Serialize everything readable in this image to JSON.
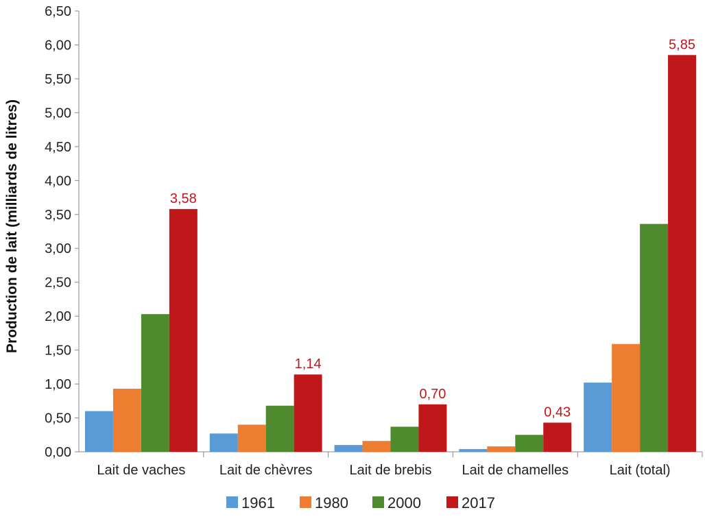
{
  "chart_data": {
    "type": "bar",
    "title": "",
    "xlabel": "",
    "ylabel": "Production de lait (milliards de litres)",
    "ylim": [
      0,
      6.5
    ],
    "yticks": [
      "0,00",
      "0,50",
      "1,00",
      "1,50",
      "2,00",
      "2,50",
      "3,00",
      "3,50",
      "4,00",
      "4,50",
      "5,00",
      "5,50",
      "6,00",
      "6,50"
    ],
    "categories": [
      "Lait de vaches",
      "Lait de chèvres",
      "Lait de brebis",
      "Lait de chamelles",
      "Lait (total)"
    ],
    "series": [
      {
        "name": "1961",
        "color": "#5b9bd5",
        "values": [
          0.6,
          0.27,
          0.1,
          0.04,
          1.02
        ]
      },
      {
        "name": "1980",
        "color": "#ed7d31",
        "values": [
          0.93,
          0.4,
          0.16,
          0.08,
          1.59
        ]
      },
      {
        "name": "2000",
        "color": "#4f8a2f",
        "values": [
          2.03,
          0.68,
          0.37,
          0.25,
          3.36
        ]
      },
      {
        "name": "2017",
        "color": "#c0171b",
        "values": [
          3.58,
          1.14,
          0.7,
          0.43,
          5.85
        ]
      }
    ],
    "data_labels": {
      "series": "2017",
      "labels": [
        "3,58",
        "1,14",
        "0,70",
        "0,43",
        "5,85"
      ],
      "color": "#c0171b"
    },
    "grid": false,
    "legend": "bottom"
  }
}
